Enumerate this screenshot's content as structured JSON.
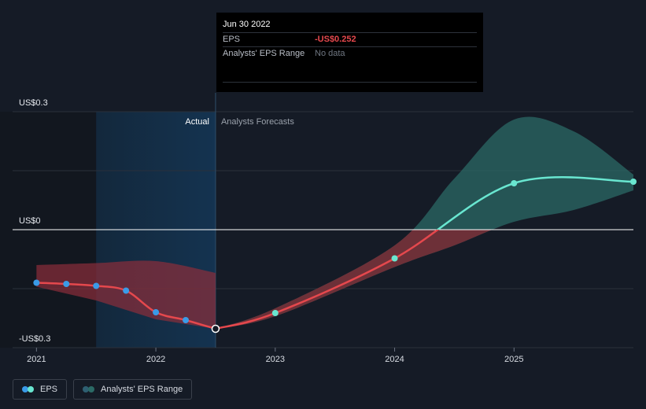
{
  "tooltip": {
    "date": "Jun 30 2022",
    "rows": [
      {
        "label": "EPS",
        "value": "-US$0.252"
      },
      {
        "label": "Analysts' EPS Range",
        "value": "No data"
      }
    ]
  },
  "labels": {
    "actual": "Actual",
    "forecast": "Analysts Forecasts"
  },
  "legend": [
    {
      "label": "EPS"
    },
    {
      "label": "Analysts' EPS Range"
    }
  ],
  "colors": {
    "actual_line": "#e5484d",
    "forecast_line": "#69e6d0",
    "forecast_band": "#2b6a66",
    "actual_band": "#8c2e3a",
    "actual_point": "#3a9be8",
    "zero_line": "#ffffff",
    "highlight_region": "#12304a"
  },
  "chart_data": {
    "type": "line",
    "title": "",
    "xlabel": "",
    "ylabel": "",
    "ylim": [
      -0.3,
      0.3
    ],
    "y_ticks": [
      {
        "value": 0.3,
        "label": "US$0.3"
      },
      {
        "value": 0,
        "label": "US$0"
      },
      {
        "value": -0.3,
        "label": "-US$0.3"
      }
    ],
    "x_ticks": [
      {
        "value": 2021,
        "label": "2021"
      },
      {
        "value": 2022,
        "label": "2022"
      },
      {
        "value": 2023,
        "label": "2023"
      },
      {
        "value": 2024,
        "label": "2024"
      },
      {
        "value": 2025,
        "label": "2025"
      }
    ],
    "xlim": [
      2020.8,
      2026.0
    ],
    "actual_divider": 2022.5,
    "highlight_start": 2021.5,
    "series": [
      {
        "name": "EPS",
        "kind": "actual",
        "x": [
          2021.0,
          2021.25,
          2021.5,
          2021.75,
          2022.0,
          2022.25,
          2022.5
        ],
        "values": [
          -0.135,
          -0.138,
          -0.143,
          -0.155,
          -0.21,
          -0.23,
          -0.252
        ]
      },
      {
        "name": "EPS",
        "kind": "forecast",
        "x": [
          2022.5,
          2023.0,
          2024.0,
          2025.0,
          2026.0
        ],
        "values": [
          -0.252,
          -0.212,
          -0.073,
          0.118,
          0.122
        ]
      }
    ],
    "actual_range": {
      "x": [
        2021.0,
        2021.5,
        2022.0,
        2022.5
      ],
      "upper": [
        -0.09,
        -0.085,
        -0.08,
        -0.11
      ],
      "lower": [
        -0.145,
        -0.18,
        -0.228,
        -0.252
      ]
    },
    "forecast_range": {
      "x": [
        2022.5,
        2023.0,
        2024.0,
        2024.5,
        2025.0,
        2025.5,
        2026.0
      ],
      "upper": [
        -0.252,
        -0.2,
        -0.04,
        0.13,
        0.28,
        0.25,
        0.14
      ],
      "lower": [
        -0.252,
        -0.22,
        -0.095,
        -0.04,
        0.02,
        0.05,
        0.1
      ]
    },
    "legend_position": "bottom-left"
  }
}
